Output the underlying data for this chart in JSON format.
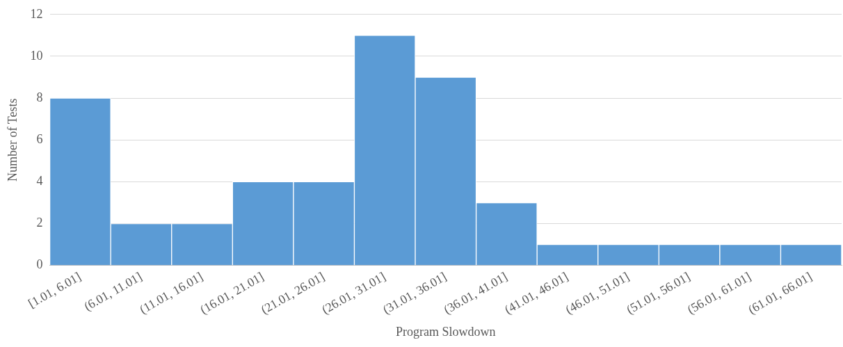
{
  "chart_data": {
    "type": "bar",
    "xlabel": "Program Slowdown",
    "ylabel": "Number of Tests",
    "categories": [
      "[1.01, 6.01]",
      "(6.01, 11.01]",
      "(11.01, 16.01]",
      "(16.01, 21.01]",
      "(21.01, 26.01]",
      "(26.01, 31.01]",
      "(31.01, 36.01]",
      "(36.01, 41.01]",
      "(41.01, 46.01]",
      "(46.01, 51.01]",
      "(51.01, 56.01]",
      "(56.01, 61.01]",
      "(61.01, 66.01]"
    ],
    "values": [
      8,
      2,
      2,
      4,
      4,
      11,
      9,
      3,
      1,
      1,
      1,
      1,
      1
    ],
    "color": "#5b9bd5",
    "ylim": [
      0,
      12
    ],
    "yticks": [
      0,
      2,
      4,
      6,
      8,
      10,
      12
    ],
    "grid": "y",
    "legend": false
  }
}
